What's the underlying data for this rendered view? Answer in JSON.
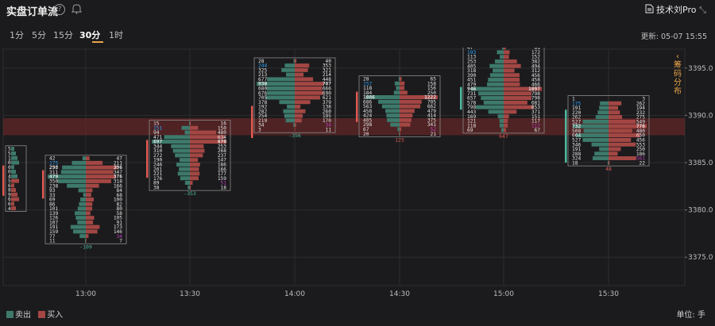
{
  "header": {
    "title": "实盘订单流",
    "tool_label": "技术刘Pro"
  },
  "tabs": [
    {
      "label": "1分",
      "active": false
    },
    {
      "label": "5分",
      "active": false
    },
    {
      "label": "15分",
      "active": false
    },
    {
      "label": "30分",
      "active": true
    },
    {
      "label": "1时",
      "active": false
    }
  ],
  "update": {
    "label": "更新:",
    "time": "05-07 15:55"
  },
  "side_tab": "筹码分布",
  "legend": {
    "sell": "卖出",
    "buy": "买入"
  },
  "unit": "单位: 手",
  "colors": {
    "sell": "#3d7a6c",
    "buy": "#a44744",
    "sell_text": "#2fa6ff",
    "buy_text": "#c040c0",
    "accent": "#e8a44a",
    "box": "#8a8a8a",
    "highlight": "#7a2a2a"
  },
  "chart_data": {
    "type": "footprint",
    "ylim": [
      3372,
      3397
    ],
    "y_ticks": [
      "3375.0",
      "3380.0",
      "3385.0",
      "3390.0",
      "3395.0"
    ],
    "x_ticks": [
      "13:00",
      "13:30",
      "14:00",
      "14:30",
      "15:00",
      "15:30"
    ],
    "highlight_band": [
      3387.9,
      3389.7
    ],
    "columns": [
      {
        "time": "12:30",
        "top": 3386.7,
        "sell": [],
        "buy": [],
        "labels_sell": [
          "5",
          "5",
          "1",
          "0",
          "0",
          "0",
          "4",
          "5",
          "6",
          "8",
          "9",
          "6",
          "6",
          "4"
        ],
        "delta": "",
        "bar": {
          "color": "buy",
          "from": 3381.5,
          "to": 3384.7
        }
      },
      {
        "time": "13:00",
        "top": 3385.7,
        "sell": [
          42,
          175,
          298,
          311,
          479,
          350,
          238,
          93,
          33,
          69,
          86,
          101,
          139,
          126,
          107,
          191,
          159,
          77,
          11
        ],
        "buy": [
          47,
          211,
          396,
          347,
          376,
          318,
          166,
          84,
          68,
          100,
          82,
          80,
          58,
          105,
          91,
          173,
          146,
          34,
          7
        ],
        "delta": "-109",
        "bar": {
          "color": "buy",
          "from": 3381.2,
          "to": 3384.2
        }
      },
      {
        "time": "13:30",
        "top": 3389.4,
        "sell": [
          15,
          151,
          94,
          471,
          697,
          344,
          310,
          272,
          190,
          246,
          201,
          221,
          176,
          89,
          38
        ],
        "buy": [
          16,
          150,
          480,
          634,
          670,
          253,
          268,
          237,
          147,
          186,
          166,
          177,
          159,
          51,
          18
        ],
        "delta": "-353",
        "bar": {
          "color": "buy",
          "from": 3383.4,
          "to": 3387.4
        }
      },
      {
        "time": "14:00",
        "top": 3396.0,
        "sell": [
          28,
          244,
          325,
          213,
          677,
          930,
          680,
          676,
          705,
          378,
          192,
          282,
          254,
          219,
          34,
          3
        ],
        "buy": [
          40,
          353,
          321,
          214,
          448,
          707,
          666,
          690,
          621,
          379,
          138,
          260,
          195,
          170,
          34,
          11
        ],
        "delta": "-356",
        "bar": {
          "color": "buy",
          "from": 3387.6,
          "to": 3391.0
        }
      },
      {
        "time": "14:30",
        "top": 3394.1,
        "sell": [
          28,
          157,
          118,
          184,
          1086,
          686,
          563,
          458,
          424,
          405,
          298,
          67,
          20
        ],
        "buy": [
          65,
          158,
          156,
          250,
          1222,
          705,
          662,
          479,
          414,
          375,
          341,
          52,
          21
        ],
        "delta": "125",
        "bar": {
          "color": "buy",
          "from": 3389.3,
          "to": 3392.5
        }
      },
      {
        "time": "15:00",
        "top": 3397.4,
        "sell": [
          47,
          193,
          113,
          253,
          405,
          318,
          390,
          451,
          479,
          946,
          731,
          657,
          578,
          798,
          443,
          169,
          121,
          118,
          69
        ],
        "buy": [
          61,
          172,
          152,
          382,
          494,
          312,
          456,
          458,
          466,
          1097,
          798,
          798,
          681,
          853,
          371,
          151,
          117,
          117,
          67
        ],
        "delta": "647",
        "bar": {
          "color": "sell",
          "from": 3390.6,
          "to": 3393.0
        }
      },
      {
        "time": "15:30",
        "top": 3392.0,
        "sell": [
          1,
          175,
          191,
          220,
          262,
          527,
          732,
          508,
          664,
          527,
          346,
          191,
          288,
          324,
          18
        ],
        "buy": [
          3,
          262,
          194,
          232,
          275,
          549,
          776,
          480,
          650,
          456,
          553,
          250,
          186,
          561,
          22
        ],
        "delta": "48",
        "bar": {
          "color": "sell",
          "from": 3385.0,
          "to": 3390.6
        }
      }
    ],
    "data_labels": {
      "13:00": {
        "sell": [
          42,
          175,
          298,
          311,
          479,
          350,
          238,
          93,
          33,
          69,
          86,
          101,
          139,
          126,
          107,
          191,
          159,
          77,
          11
        ],
        "buy": [
          47,
          211,
          396,
          347,
          376,
          318,
          166,
          84,
          68,
          100,
          82,
          80,
          58,
          105,
          91,
          173,
          146,
          34,
          7
        ]
      }
    }
  }
}
